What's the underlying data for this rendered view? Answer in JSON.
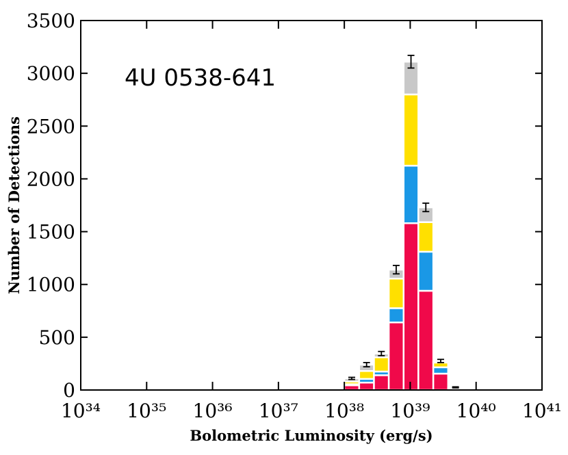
{
  "chart_data": {
    "type": "stacked_histogram",
    "annotation": "4U 0538-641",
    "xlabel": "Bolometric Luminosity (erg/s)",
    "ylabel": "Number of Detections",
    "log_x": true,
    "bins": [
      1e+38,
      1.68e+38,
      2.82e+38,
      4.73e+38,
      7.94e+38,
      1.33e+39,
      2.24e+39,
      3.76e+39,
      6.31e+39
    ],
    "series": [
      {
        "color": "#f0094a",
        "values": [
          45,
          70,
          140,
          640,
          1580,
          940,
          155,
          15
        ]
      },
      {
        "color": "#1a98e6",
        "values": [
          10,
          35,
          35,
          135,
          545,
          370,
          60,
          5
        ]
      },
      {
        "color": "#ffe000",
        "values": [
          25,
          75,
          135,
          280,
          675,
          280,
          45,
          0
        ]
      },
      {
        "color": "#c8c8c8",
        "values": [
          30,
          60,
          35,
          85,
          310,
          140,
          15,
          5
        ]
      }
    ],
    "errors": [
      10,
      20,
      20,
      40,
      60,
      40,
      15,
      5
    ],
    "xlim": [
      1e+34,
      1e+41
    ],
    "xticks": [
      {
        "value": 1e+34,
        "label": "10³⁴"
      },
      {
        "value": 1e+35,
        "label": "10³⁵"
      },
      {
        "value": 1e+36,
        "label": "10³⁶"
      },
      {
        "value": 1e+37,
        "label": "10³⁷"
      },
      {
        "value": 1e+38,
        "label": "10³⁸"
      },
      {
        "value": 1e+39,
        "label": "10³⁹"
      },
      {
        "value": 1e+40,
        "label": "10⁴⁰"
      },
      {
        "value": 1e+41,
        "label": "10⁴¹"
      }
    ],
    "ylim": [
      0,
      3500
    ],
    "yticks": [
      0,
      500,
      1000,
      1500,
      2000,
      2500,
      3000,
      3500
    ]
  }
}
